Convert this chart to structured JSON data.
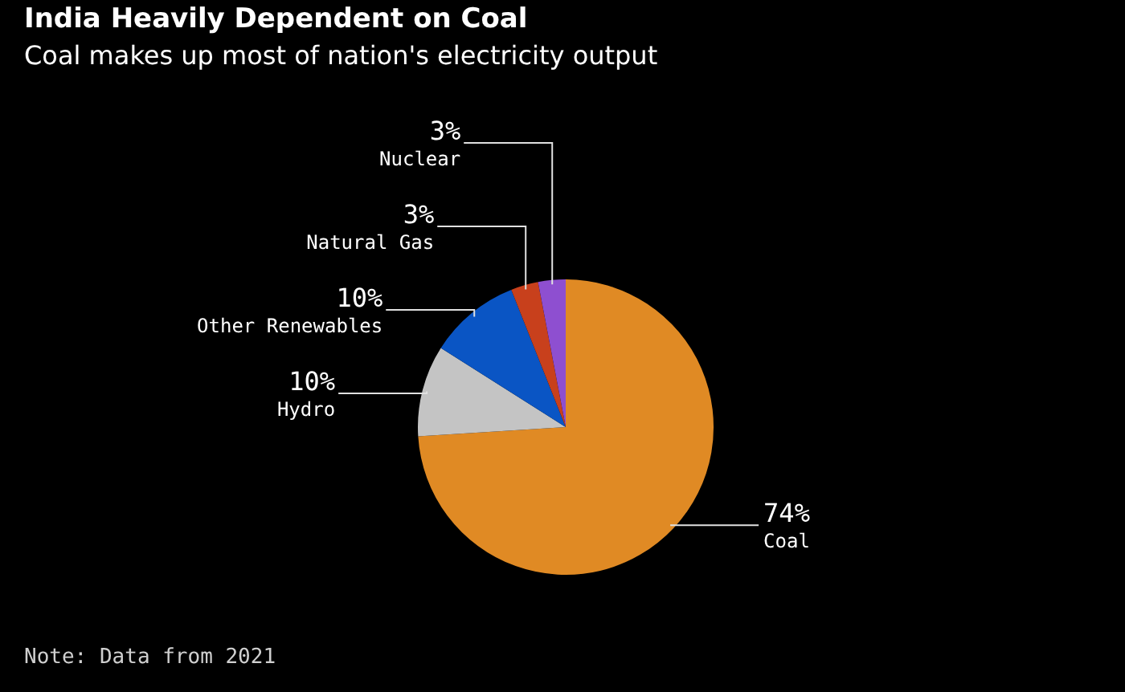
{
  "chart_data": {
    "type": "pie",
    "title": "India Heavily Dependent on Coal",
    "subtitle": "Coal makes up most of nation's electricity output",
    "categories": [
      "Coal",
      "Hydro",
      "Other Renewables",
      "Natural Gas",
      "Nuclear"
    ],
    "values": [
      74,
      10,
      10,
      3,
      3
    ],
    "colors": [
      "#e08a24",
      "#c4c4c4",
      "#0a55c4",
      "#c8401c",
      "#8e4fd0"
    ],
    "value_labels": [
      "74%",
      "10%",
      "10%",
      "3%",
      "3%"
    ],
    "annotations": [
      "Note: Data from 2021"
    ],
    "legend": false
  }
}
